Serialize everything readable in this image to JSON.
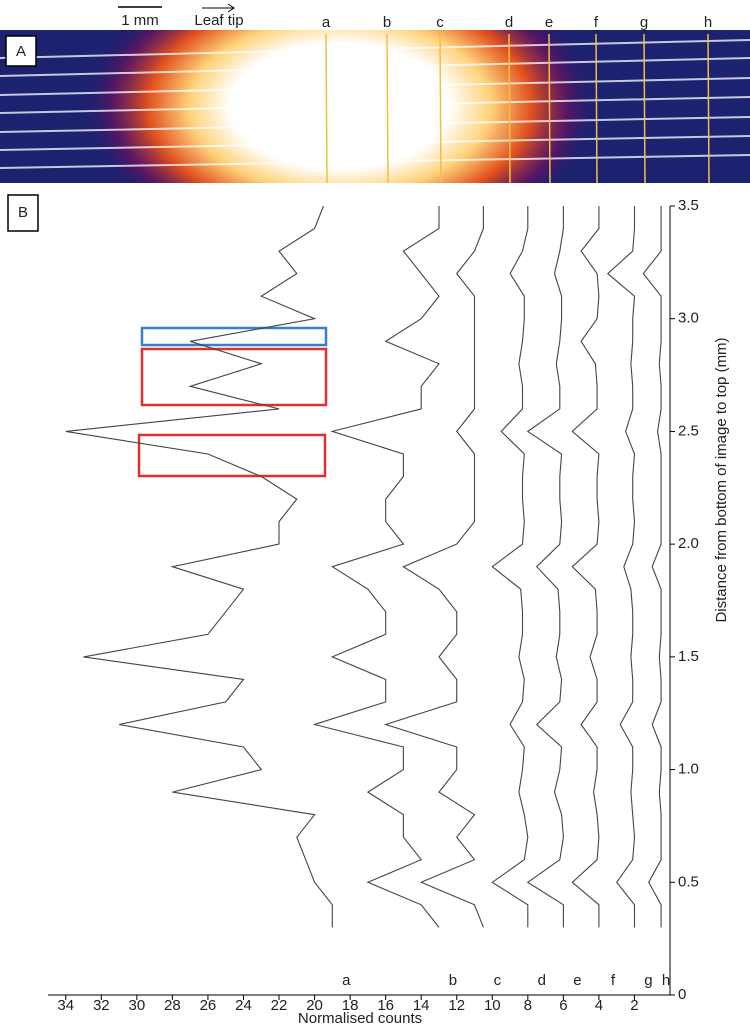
{
  "panel_a": {
    "label": "A",
    "scale_bar": "1 mm",
    "direction": "Leaf tip",
    "lines": [
      "a",
      "b",
      "c",
      "d",
      "e",
      "f",
      "g",
      "h"
    ]
  },
  "chart_data": {
    "type": "line",
    "panel_label": "B",
    "x_label": "Normalised counts",
    "y_label": "Distance from bottom of image to top (mm)",
    "xlim": [
      35,
      0
    ],
    "xticks": [
      2,
      4,
      6,
      8,
      10,
      12,
      14,
      16,
      18,
      20,
      22,
      24,
      26,
      28,
      30,
      32,
      34
    ],
    "ylim": [
      0,
      3.5
    ],
    "yticks": [
      0,
      0.5,
      {
        "value": 1,
        "label": "1.0"
      },
      1.5,
      {
        "value": 2,
        "label": "2.0"
      },
      2.5,
      {
        "value": 3,
        "label": "3.0"
      },
      3.5
    ],
    "y": [
      0.3,
      0.4,
      0.5,
      0.6,
      0.7,
      0.8,
      0.9,
      1.0,
      1.1,
      1.2,
      1.3,
      1.4,
      1.5,
      1.6,
      1.7,
      1.8,
      1.9,
      2.0,
      2.1,
      2.2,
      2.3,
      2.4,
      2.5,
      2.6,
      2.7,
      2.8,
      2.9,
      3.0,
      3.1,
      3.2,
      3.3,
      3.4,
      3.5
    ],
    "series": [
      {
        "name": "a",
        "color": "#444444",
        "values": [
          19,
          19,
          20,
          20.5,
          21,
          20,
          28,
          23,
          24,
          31,
          25,
          24,
          33,
          26,
          25,
          24,
          28,
          22,
          22,
          21,
          23,
          26,
          34,
          22,
          27,
          23,
          27,
          20,
          23,
          21,
          22,
          20,
          19.5
        ]
      },
      {
        "name": "b",
        "color": "#444444",
        "values": [
          13,
          14,
          17,
          14,
          15,
          15,
          17,
          15,
          15,
          20,
          16,
          16,
          19,
          16,
          16,
          17,
          19,
          15,
          16,
          16,
          15,
          15,
          19,
          14,
          14,
          13,
          16,
          14,
          13,
          14,
          15,
          13,
          13
        ]
      },
      {
        "name": "c",
        "color": "#444444",
        "values": [
          10.5,
          11,
          14,
          11,
          12,
          11,
          13,
          12,
          12,
          16,
          12,
          12,
          13,
          12,
          12,
          13,
          15,
          12,
          11,
          11,
          11,
          11,
          12,
          11,
          11,
          11,
          11,
          11,
          11,
          12,
          11,
          10.5,
          10.5
        ]
      },
      {
        "name": "d",
        "color": "#444444",
        "values": [
          8,
          8,
          10,
          8.2,
          8,
          8.2,
          8.5,
          8.3,
          8.2,
          9,
          8.3,
          8.2,
          8.5,
          8.3,
          8.3,
          8.4,
          10,
          8.3,
          8.2,
          8.3,
          8.3,
          8.2,
          9.5,
          8.3,
          8.3,
          8.5,
          8.3,
          8.2,
          8.2,
          9,
          8.3,
          8,
          8
        ]
      },
      {
        "name": "e",
        "color": "#444444",
        "values": [
          6,
          6,
          8,
          6.2,
          6,
          6.1,
          6.5,
          6.2,
          6.1,
          7.5,
          6.2,
          6.1,
          6.4,
          6.2,
          6.2,
          6.3,
          7.5,
          6.2,
          6.1,
          6.2,
          6.2,
          6.1,
          8,
          6.2,
          6.2,
          6.4,
          6.2,
          6.1,
          6.1,
          6.5,
          6.2,
          6,
          6
        ]
      },
      {
        "name": "f",
        "color": "#444444",
        "values": [
          4,
          4,
          5.5,
          4.1,
          4,
          4.1,
          4.3,
          4.1,
          4.1,
          5,
          4.1,
          4.1,
          4.5,
          4.1,
          4.1,
          4.2,
          5.5,
          4.1,
          4,
          4.1,
          4.1,
          4,
          5.5,
          4.1,
          4.1,
          4.2,
          5,
          4.1,
          4,
          4.1,
          5,
          4,
          4
        ]
      },
      {
        "name": "g",
        "color": "#444444",
        "values": [
          2,
          2,
          3,
          2.1,
          2,
          2.1,
          2.2,
          2.1,
          2.1,
          2.8,
          2.1,
          2.1,
          2.2,
          2.1,
          2.1,
          2.2,
          2.6,
          2.1,
          2,
          2.1,
          2.1,
          2,
          2.5,
          2.1,
          2.1,
          2.2,
          2.1,
          2.1,
          2,
          3.5,
          2.1,
          2,
          2
        ]
      },
      {
        "name": "h",
        "color": "#444444",
        "values": [
          0.5,
          0.5,
          1.2,
          0.5,
          0.5,
          0.5,
          0.6,
          0.5,
          0.5,
          1,
          0.5,
          0.5,
          0.6,
          0.5,
          0.5,
          0.5,
          1,
          0.5,
          0.5,
          0.5,
          0.5,
          0.5,
          0.7,
          0.5,
          0.5,
          0.6,
          0.5,
          0.5,
          0.5,
          1.5,
          0.5,
          0.5,
          0.5
        ]
      }
    ]
  }
}
